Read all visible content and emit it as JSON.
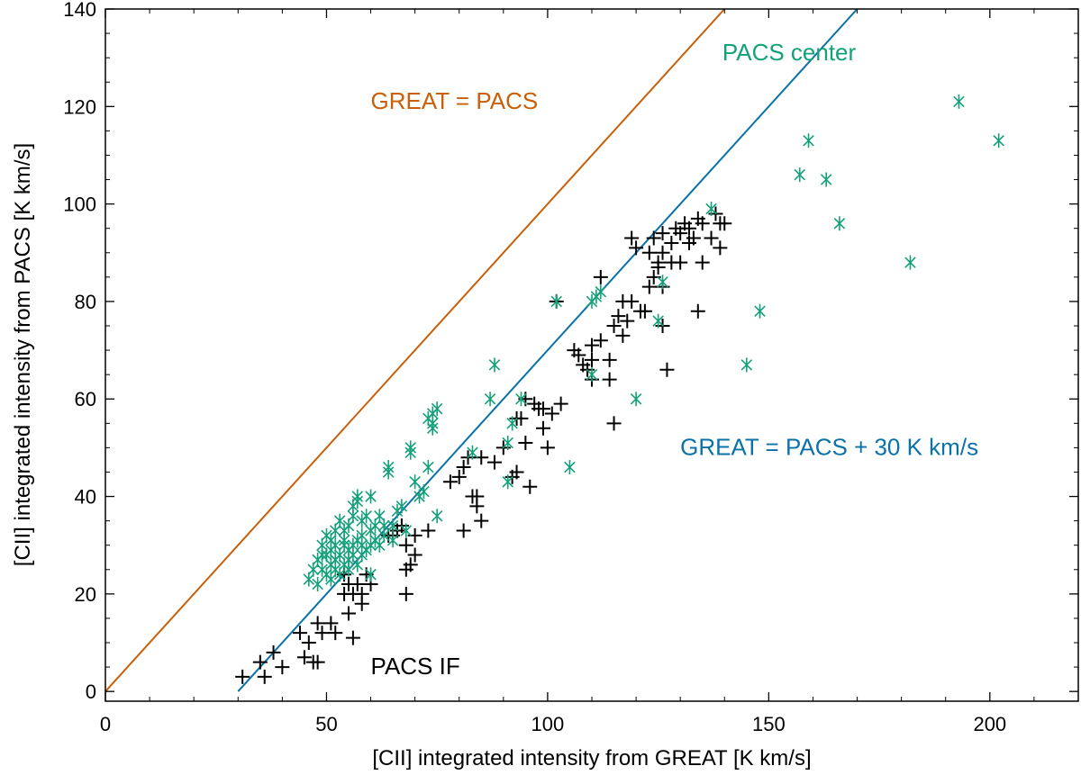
{
  "chart_data": {
    "type": "scatter",
    "xlabel": "[CII] integrated intensity from GREAT [K km/s]",
    "ylabel": "[CII] integrated intensity from PACS [K km/s]",
    "xlim": [
      0,
      220
    ],
    "ylim": [
      -2,
      140
    ],
    "xticks": [
      0,
      50,
      100,
      150,
      200
    ],
    "yticks": [
      0,
      20,
      40,
      60,
      80,
      100,
      120,
      140
    ],
    "x_minor_step": 10,
    "y_minor_step": 5,
    "colors": {
      "great_eq_pacs": "#c8600a",
      "offset_line": "#0a72a8",
      "pacs_center": "#14a07a",
      "pacs_if": "#000000"
    },
    "lines": [
      {
        "name": "GREAT = PACS",
        "x": [
          0,
          140
        ],
        "y": [
          0,
          140
        ]
      },
      {
        "name": "GREAT = PACS + 30 K km/s",
        "x": [
          30,
          170
        ],
        "y": [
          0,
          140
        ]
      }
    ],
    "annotations": [
      {
        "text": "GREAT = PACS",
        "series": "great_eq_pacs",
        "x": 60,
        "y": 119.5
      },
      {
        "text": "PACS center",
        "series": "pacs_center",
        "x": 139.5,
        "y": 129.5
      },
      {
        "text": "GREAT = PACS + 30 K km/s",
        "series": "offset_line",
        "x": 130,
        "y": 48.5
      },
      {
        "text": "PACS IF",
        "series": "pacs_if",
        "x": 60,
        "y": 3.5
      }
    ],
    "series": [
      {
        "name": "PACS IF",
        "marker": "plus",
        "points": [
          [
            31,
            3
          ],
          [
            35,
            6
          ],
          [
            36,
            3
          ],
          [
            38,
            8
          ],
          [
            40,
            5
          ],
          [
            44,
            12
          ],
          [
            45,
            7
          ],
          [
            46,
            10
          ],
          [
            47,
            6
          ],
          [
            48,
            6
          ],
          [
            48,
            14
          ],
          [
            49,
            12
          ],
          [
            51,
            14
          ],
          [
            52,
            12
          ],
          [
            54,
            20
          ],
          [
            54,
            24
          ],
          [
            55,
            16
          ],
          [
            55,
            22
          ],
          [
            56,
            20
          ],
          [
            56,
            11
          ],
          [
            57,
            22
          ],
          [
            58,
            18
          ],
          [
            58,
            20
          ],
          [
            59,
            24
          ],
          [
            60,
            22
          ],
          [
            64,
            32
          ],
          [
            65,
            32
          ],
          [
            66,
            33
          ],
          [
            67,
            34
          ],
          [
            68,
            20
          ],
          [
            68,
            25
          ],
          [
            68,
            30
          ],
          [
            69,
            26
          ],
          [
            70,
            32
          ],
          [
            70,
            28
          ],
          [
            73,
            33
          ],
          [
            78,
            43
          ],
          [
            80,
            44
          ],
          [
            81,
            33
          ],
          [
            81,
            46
          ],
          [
            82,
            48
          ],
          [
            83,
            40
          ],
          [
            84,
            40
          ],
          [
            84,
            38
          ],
          [
            85,
            35
          ],
          [
            85,
            48
          ],
          [
            88,
            47
          ],
          [
            90,
            50
          ],
          [
            92,
            44
          ],
          [
            93,
            56
          ],
          [
            93,
            45
          ],
          [
            94,
            56
          ],
          [
            95,
            60
          ],
          [
            95,
            51
          ],
          [
            96,
            42
          ],
          [
            97,
            59
          ],
          [
            98,
            58
          ],
          [
            99,
            58
          ],
          [
            99,
            54
          ],
          [
            100,
            50
          ],
          [
            101,
            57
          ],
          [
            102,
            80
          ],
          [
            103,
            59
          ],
          [
            106,
            70
          ],
          [
            107,
            69
          ],
          [
            108,
            67
          ],
          [
            109,
            66
          ],
          [
            110,
            64
          ],
          [
            110,
            71
          ],
          [
            110,
            68
          ],
          [
            112,
            72
          ],
          [
            112,
            85
          ],
          [
            114,
            68
          ],
          [
            114,
            64
          ],
          [
            115,
            75
          ],
          [
            115,
            55
          ],
          [
            116,
            77
          ],
          [
            117,
            80
          ],
          [
            117,
            73
          ],
          [
            118,
            76
          ],
          [
            119,
            80
          ],
          [
            119,
            93
          ],
          [
            120,
            91
          ],
          [
            121,
            78
          ],
          [
            122,
            78
          ],
          [
            123,
            90
          ],
          [
            123,
            83
          ],
          [
            124,
            85
          ],
          [
            124,
            93
          ],
          [
            125,
            88
          ],
          [
            125,
            87
          ],
          [
            126,
            94
          ],
          [
            126,
            90
          ],
          [
            126,
            75
          ],
          [
            126,
            83
          ],
          [
            127,
            66
          ],
          [
            128,
            92
          ],
          [
            128,
            88
          ],
          [
            129,
            95
          ],
          [
            130,
            94
          ],
          [
            130,
            88
          ],
          [
            131,
            96
          ],
          [
            132,
            95
          ],
          [
            132,
            92
          ],
          [
            133,
            93
          ],
          [
            134,
            97
          ],
          [
            134,
            78
          ],
          [
            135,
            88
          ],
          [
            135,
            96
          ],
          [
            137,
            93
          ],
          [
            138,
            98
          ],
          [
            139,
            96
          ],
          [
            139,
            91
          ],
          [
            140,
            96
          ]
        ]
      },
      {
        "name": "PACS center",
        "marker": "asterisk",
        "points": [
          [
            46,
            23
          ],
          [
            47,
            25
          ],
          [
            48,
            27
          ],
          [
            48,
            22
          ],
          [
            49,
            28
          ],
          [
            49,
            25
          ],
          [
            49,
            30
          ],
          [
            50,
            24
          ],
          [
            50,
            28
          ],
          [
            50,
            32
          ],
          [
            51,
            26
          ],
          [
            51,
            29
          ],
          [
            51,
            31
          ],
          [
            51,
            23
          ],
          [
            52,
            27
          ],
          [
            52,
            30
          ],
          [
            52,
            33
          ],
          [
            52,
            25
          ],
          [
            53,
            28
          ],
          [
            53,
            35
          ],
          [
            53,
            24
          ],
          [
            54,
            26
          ],
          [
            54,
            30
          ],
          [
            54,
            31
          ],
          [
            54,
            33
          ],
          [
            55,
            27
          ],
          [
            55,
            29
          ],
          [
            55,
            25
          ],
          [
            55,
            34
          ],
          [
            56,
            28
          ],
          [
            56,
            30
          ],
          [
            56,
            36
          ],
          [
            56,
            38
          ],
          [
            57,
            31
          ],
          [
            57,
            26
          ],
          [
            57,
            39
          ],
          [
            57,
            40
          ],
          [
            58,
            30
          ],
          [
            58,
            32
          ],
          [
            58,
            35
          ],
          [
            58,
            28
          ],
          [
            59,
            36
          ],
          [
            59,
            29
          ],
          [
            60,
            30
          ],
          [
            60,
            33
          ],
          [
            60,
            40
          ],
          [
            60,
            24
          ],
          [
            61,
            31
          ],
          [
            61,
            34
          ],
          [
            62,
            36
          ],
          [
            62,
            30
          ],
          [
            63,
            32
          ],
          [
            63,
            34
          ],
          [
            64,
            46
          ],
          [
            64,
            45
          ],
          [
            65,
            34
          ],
          [
            65,
            31
          ],
          [
            66,
            37
          ],
          [
            67,
            38
          ],
          [
            68,
            33
          ],
          [
            69,
            50
          ],
          [
            69,
            49
          ],
          [
            70,
            43
          ],
          [
            71,
            40
          ],
          [
            72,
            41
          ],
          [
            73,
            46
          ],
          [
            73,
            56
          ],
          [
            74,
            55
          ],
          [
            74,
            57
          ],
          [
            74,
            54
          ],
          [
            75,
            36
          ],
          [
            75,
            58
          ],
          [
            83,
            49
          ],
          [
            87,
            60
          ],
          [
            88,
            67
          ],
          [
            91,
            51
          ],
          [
            91,
            43
          ],
          [
            92,
            55
          ],
          [
            94,
            60
          ],
          [
            102,
            80
          ],
          [
            105,
            46
          ],
          [
            110,
            65
          ],
          [
            110,
            80
          ],
          [
            111,
            81
          ],
          [
            112,
            82
          ],
          [
            120,
            60
          ],
          [
            125,
            76
          ],
          [
            126,
            84
          ],
          [
            137,
            99
          ],
          [
            145,
            67
          ],
          [
            148,
            78
          ],
          [
            157,
            106
          ],
          [
            159,
            113
          ],
          [
            163,
            105
          ],
          [
            166,
            96
          ],
          [
            182,
            88
          ],
          [
            193,
            121
          ],
          [
            202,
            113
          ]
        ]
      }
    ]
  }
}
